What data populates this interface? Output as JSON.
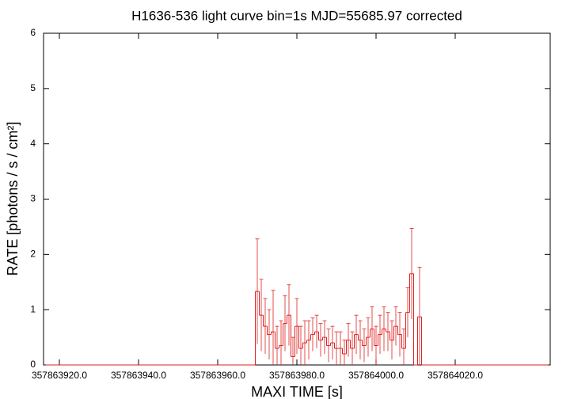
{
  "chart_data": {
    "type": "errorbar-step",
    "title": "H1636-536 light curve bin=1s MJD=55685.97 corrected",
    "x_label": "MAXI TIME [s]",
    "y_label": "RATE [photons / s / cm²]",
    "color": "#e02020",
    "xlim": [
      357863916,
      357864044
    ],
    "ylim": [
      0,
      6
    ],
    "xticks": [
      {
        "value": 357863920,
        "label": "357863920.0"
      },
      {
        "value": 357863940,
        "label": "357863940.0"
      },
      {
        "value": 357863960,
        "label": "357863960.0"
      },
      {
        "value": 357863980,
        "label": "357863980.0"
      },
      {
        "value": 357864000,
        "label": "357864000.0"
      },
      {
        "value": 357864020,
        "label": "357864020.0"
      }
    ],
    "yticks": [
      0,
      1,
      2,
      3,
      4,
      5,
      6
    ],
    "x": [
      357863917,
      357863918,
      357863919,
      357863920,
      357863921,
      357863922,
      357863923,
      357863924,
      357863925,
      357863926,
      357863927,
      357863928,
      357863929,
      357863930,
      357863931,
      357863932,
      357863933,
      357863934,
      357863935,
      357863936,
      357863937,
      357863938,
      357863939,
      357863940,
      357863941,
      357863942,
      357863943,
      357863944,
      357863945,
      357863946,
      357863947,
      357863948,
      357863949,
      357863950,
      357863951,
      357863952,
      357863953,
      357863954,
      357863955,
      357863956,
      357863957,
      357863958,
      357863959,
      357863960,
      357863961,
      357863962,
      357863963,
      357863964,
      357863965,
      357863966,
      357863967,
      357863968,
      357863969,
      357863970,
      357863971,
      357863972,
      357863973,
      357863974,
      357863975,
      357863976,
      357863977,
      357863978,
      357863979,
      357863980,
      357863981,
      357863982,
      357863983,
      357863984,
      357863985,
      357863986,
      357863987,
      357863988,
      357863989,
      357863990,
      357863991,
      357863992,
      357863993,
      357863994,
      357863995,
      357863996,
      357863997,
      357863998,
      357863999,
      357864000,
      357864001,
      357864002,
      357864003,
      357864004,
      357864005,
      357864006,
      357864007,
      357864008,
      357864009,
      357864010,
      357864011,
      357864012,
      357864013,
      357864014,
      357864015,
      357864016,
      357864017,
      357864018,
      357864019,
      357864020,
      357864021,
      357864022,
      357864023,
      357864024,
      357864025,
      357864026,
      357864027,
      357864028,
      357864029,
      357864030,
      357864031,
      357864032,
      357864033,
      357864034,
      357864035,
      357864036,
      357864037,
      357864038,
      357864039,
      357864040,
      357864041,
      357864042,
      357864043
    ],
    "values": [
      0,
      0,
      0,
      0,
      0,
      0,
      0,
      0,
      0,
      0,
      0,
      0,
      0,
      0,
      0,
      0,
      0,
      0,
      0,
      0,
      0,
      0,
      0,
      0,
      0,
      0,
      0,
      0,
      0,
      0,
      0,
      0,
      0,
      0,
      0,
      0,
      0,
      0,
      0,
      0,
      0,
      0,
      0,
      0,
      0,
      0,
      0,
      0,
      0,
      0,
      0,
      0,
      0,
      1.33,
      0.9,
      0.7,
      0.55,
      0.6,
      0.3,
      0.35,
      0.75,
      0.9,
      0.15,
      0.7,
      0.3,
      0.4,
      0.45,
      0.55,
      0.6,
      0.45,
      0.5,
      0.35,
      0.4,
      0.3,
      0.3,
      0.2,
      0.45,
      0.3,
      0.55,
      0.45,
      0.35,
      0.5,
      0.65,
      0.35,
      0.55,
      0.65,
      0.6,
      0.45,
      0.7,
      0.55,
      0.3,
      0.95,
      1.65,
      0,
      0.87,
      0,
      0,
      0,
      0,
      0,
      0,
      0,
      0,
      0,
      0,
      0,
      0,
      0,
      0,
      0,
      0,
      0,
      0,
      0,
      0,
      0,
      0,
      0,
      0,
      0,
      0,
      0,
      0,
      0,
      0,
      0,
      0
    ],
    "errors": [
      0,
      0,
      0,
      0,
      0,
      0,
      0,
      0,
      0,
      0,
      0,
      0,
      0,
      0,
      0,
      0,
      0,
      0,
      0,
      0,
      0,
      0,
      0,
      0,
      0,
      0,
      0,
      0,
      0,
      0,
      0,
      0,
      0,
      0,
      0,
      0,
      0,
      0,
      0,
      0,
      0,
      0,
      0,
      0,
      0,
      0,
      0,
      0,
      0,
      0,
      0,
      0,
      0,
      0.95,
      0.65,
      0.5,
      0.45,
      0.75,
      0.4,
      0.45,
      0.5,
      0.55,
      0.35,
      0.5,
      0.4,
      0.4,
      0.35,
      0.3,
      0.3,
      0.3,
      0.3,
      0.3,
      0.3,
      0.3,
      0.3,
      0.25,
      0.3,
      0.3,
      0.35,
      0.35,
      0.3,
      0.35,
      0.4,
      0.35,
      0.35,
      0.4,
      0.35,
      0.35,
      0.35,
      0.4,
      0.35,
      0.45,
      0.82,
      0,
      0.9,
      0,
      0,
      0,
      0,
      0,
      0,
      0,
      0,
      0,
      0,
      0,
      0,
      0,
      0,
      0,
      0,
      0,
      0,
      0,
      0,
      0,
      0,
      0,
      0,
      0,
      0,
      0,
      0,
      0,
      0,
      0,
      0
    ]
  }
}
